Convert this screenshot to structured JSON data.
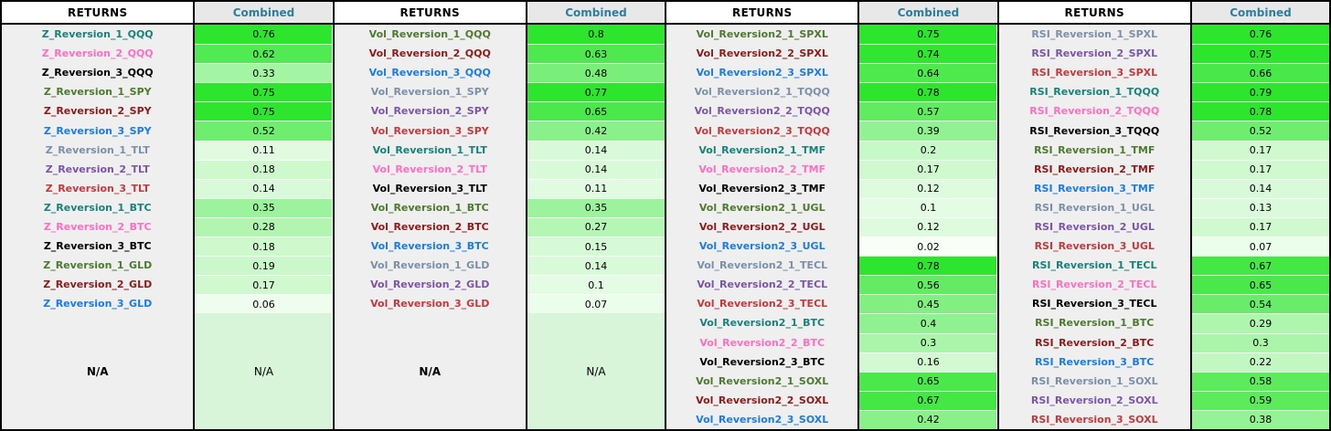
{
  "headers": {
    "returns": "RETURNS",
    "combined": "Combined"
  },
  "na_label": "N/A",
  "palette": {
    "teal": "#18827b",
    "pink": "#ff6ec0",
    "black": "#000000",
    "green": "#4d7a2e",
    "darkred": "#8e1b1b",
    "blue": "#1b7ce5",
    "slate": "#7b8fa9",
    "purple": "#7d55a8",
    "crimson": "#c23a3e",
    "header_combined_text": "#2d7d9e",
    "header_combined_bg": "#e8e8e8",
    "returns_cell_bg": "#efefef",
    "heat_high": "#2ee52e",
    "heat_low": "#ffffff",
    "na_value_bg": "#d9f5d9",
    "border": "#000000"
  },
  "chart_data": {
    "type": "table",
    "column_headers": [
      "RETURNS",
      "Combined"
    ],
    "value_scale": {
      "low": 0,
      "saturation_point": 0.75,
      "low_color": "#ffffff",
      "high_color": "#2ee52e"
    },
    "blocks": [
      {
        "name": "Z_Reversion",
        "has_na_row": true,
        "rows": [
          {
            "label": "Z_Reversion_1_QQQ",
            "color": "teal",
            "value": "0.76"
          },
          {
            "label": "Z_Reversion_2_QQQ",
            "color": "pink",
            "value": "0.62"
          },
          {
            "label": "Z_Reversion_3_QQQ",
            "color": "black",
            "value": "0.33"
          },
          {
            "label": "Z_Reversion_1_SPY",
            "color": "green",
            "value": "0.75"
          },
          {
            "label": "Z_Reversion_2_SPY",
            "color": "darkred",
            "value": "0.75"
          },
          {
            "label": "Z_Reversion_3_SPY",
            "color": "blue",
            "value": "0.52"
          },
          {
            "label": "Z_Reversion_1_TLT",
            "color": "slate",
            "value": "0.11"
          },
          {
            "label": "Z_Reversion_2_TLT",
            "color": "purple",
            "value": "0.18"
          },
          {
            "label": "Z_Reversion_3_TLT",
            "color": "crimson",
            "value": "0.14"
          },
          {
            "label": "Z_Reversion_1_BTC",
            "color": "teal",
            "value": "0.35"
          },
          {
            "label": "Z_Reversion_2_BTC",
            "color": "pink",
            "value": "0.28"
          },
          {
            "label": "Z_Reversion_3_BTC",
            "color": "black",
            "value": "0.18"
          },
          {
            "label": "Z_Reversion_1_GLD",
            "color": "green",
            "value": "0.19"
          },
          {
            "label": "Z_Reversion_2_GLD",
            "color": "darkred",
            "value": "0.17"
          },
          {
            "label": "Z_Reversion_3_GLD",
            "color": "blue",
            "value": "0.06"
          }
        ]
      },
      {
        "name": "Vol_Reversion",
        "has_na_row": true,
        "rows": [
          {
            "label": "Vol_Reversion_1_QQQ",
            "color": "green",
            "value": "0.8"
          },
          {
            "label": "Vol_Reversion_2_QQQ",
            "color": "darkred",
            "value": "0.63"
          },
          {
            "label": "Vol_Reversion_3_QQQ",
            "color": "blue",
            "value": "0.48"
          },
          {
            "label": "Vol_Reversion_1_SPY",
            "color": "slate",
            "value": "0.77"
          },
          {
            "label": "Vol_Reversion_2_SPY",
            "color": "purple",
            "value": "0.65"
          },
          {
            "label": "Vol_Reversion_3_SPY",
            "color": "crimson",
            "value": "0.42"
          },
          {
            "label": "Vol_Reversion_1_TLT",
            "color": "teal",
            "value": "0.14"
          },
          {
            "label": "Vol_Reversion_2_TLT",
            "color": "pink",
            "value": "0.14"
          },
          {
            "label": "Vol_Reversion_3_TLT",
            "color": "black",
            "value": "0.11"
          },
          {
            "label": "Vol_Reversion_1_BTC",
            "color": "green",
            "value": "0.35"
          },
          {
            "label": "Vol_Reversion_2_BTC",
            "color": "darkred",
            "value": "0.27"
          },
          {
            "label": "Vol_Reversion_3_BTC",
            "color": "blue",
            "value": "0.15"
          },
          {
            "label": "Vol_Reversion_1_GLD",
            "color": "slate",
            "value": "0.14"
          },
          {
            "label": "Vol_Reversion_2_GLD",
            "color": "purple",
            "value": "0.1"
          },
          {
            "label": "Vol_Reversion_3_GLD",
            "color": "crimson",
            "value": "0.07"
          }
        ]
      },
      {
        "name": "Vol_Reversion2",
        "has_na_row": false,
        "rows": [
          {
            "label": "Vol_Reversion2_1_SPXL",
            "color": "green",
            "value": "0.75"
          },
          {
            "label": "Vol_Reversion2_2_SPXL",
            "color": "darkred",
            "value": "0.74"
          },
          {
            "label": "Vol_Reversion2_3_SPXL",
            "color": "blue",
            "value": "0.64"
          },
          {
            "label": "Vol_Reversion2_1_TQQQ",
            "color": "slate",
            "value": "0.78"
          },
          {
            "label": "Vol_Reversion2_2_TQQQ",
            "color": "purple",
            "value": "0.57"
          },
          {
            "label": "Vol_Reversion2_3_TQQQ",
            "color": "crimson",
            "value": "0.39"
          },
          {
            "label": "Vol_Reversion2_1_TMF",
            "color": "teal",
            "value": "0.2"
          },
          {
            "label": "Vol_Reversion2_2_TMF",
            "color": "pink",
            "value": "0.17"
          },
          {
            "label": "Vol_Reversion2_3_TMF",
            "color": "black",
            "value": "0.12"
          },
          {
            "label": "Vol_Reversion2_1_UGL",
            "color": "green",
            "value": "0.1"
          },
          {
            "label": "Vol_Reversion2_2_UGL",
            "color": "darkred",
            "value": "0.12"
          },
          {
            "label": "Vol_Reversion2_3_UGL",
            "color": "blue",
            "value": "0.02"
          },
          {
            "label": "Vol_Reversion2_1_TECL",
            "color": "slate",
            "value": "0.78"
          },
          {
            "label": "Vol_Reversion2_2_TECL",
            "color": "purple",
            "value": "0.56"
          },
          {
            "label": "Vol_Reversion2_3_TECL",
            "color": "crimson",
            "value": "0.45"
          },
          {
            "label": "Vol_Reversion2_1_BTC",
            "color": "teal",
            "value": "0.4"
          },
          {
            "label": "Vol_Reversion2_2_BTC",
            "color": "pink",
            "value": "0.3"
          },
          {
            "label": "Vol_Reversion2_3_BTC",
            "color": "black",
            "value": "0.16"
          },
          {
            "label": "Vol_Reversion2_1_SOXL",
            "color": "green",
            "value": "0.65"
          },
          {
            "label": "Vol_Reversion2_2_SOXL",
            "color": "darkred",
            "value": "0.67"
          },
          {
            "label": "Vol_Reversion2_3_SOXL",
            "color": "blue",
            "value": "0.42"
          }
        ]
      },
      {
        "name": "RSI_Reversion",
        "has_na_row": false,
        "rows": [
          {
            "label": "RSI_Reversion_1_SPXL",
            "color": "slate",
            "value": "0.76"
          },
          {
            "label": "RSI_Reversion_2_SPXL",
            "color": "purple",
            "value": "0.75"
          },
          {
            "label": "RSI_Reversion_3_SPXL",
            "color": "crimson",
            "value": "0.66"
          },
          {
            "label": "RSI_Reversion_1_TQQQ",
            "color": "teal",
            "value": "0.79"
          },
          {
            "label": "RSI_Reversion_2_TQQQ",
            "color": "pink",
            "value": "0.78"
          },
          {
            "label": "RSI_Reversion_3_TQQQ",
            "color": "black",
            "value": "0.52"
          },
          {
            "label": "RSI_Reversion_1_TMF",
            "color": "green",
            "value": "0.17"
          },
          {
            "label": "RSI_Reversion_2_TMF",
            "color": "darkred",
            "value": "0.17"
          },
          {
            "label": "RSI_Reversion_3_TMF",
            "color": "blue",
            "value": "0.14"
          },
          {
            "label": "RSI_Reversion_1_UGL",
            "color": "slate",
            "value": "0.13"
          },
          {
            "label": "RSI_Reversion_2_UGL",
            "color": "purple",
            "value": "0.17"
          },
          {
            "label": "RSI_Reversion_3_UGL",
            "color": "crimson",
            "value": "0.07"
          },
          {
            "label": "RSI_Reversion_1_TECL",
            "color": "teal",
            "value": "0.67"
          },
          {
            "label": "RSI_Reversion_2_TECL",
            "color": "pink",
            "value": "0.65"
          },
          {
            "label": "RSI_Reversion_3_TECL",
            "color": "black",
            "value": "0.54"
          },
          {
            "label": "RSI_Reversion_1_BTC",
            "color": "green",
            "value": "0.29"
          },
          {
            "label": "RSI_Reversion_2_BTC",
            "color": "darkred",
            "value": "0.3"
          },
          {
            "label": "RSI_Reversion_3_BTC",
            "color": "blue",
            "value": "0.22"
          },
          {
            "label": "RSI_Reversion_1_SOXL",
            "color": "slate",
            "value": "0.58"
          },
          {
            "label": "RSI_Reversion_2_SOXL",
            "color": "purple",
            "value": "0.59"
          },
          {
            "label": "RSI_Reversion_3_SOXL",
            "color": "crimson",
            "value": "0.38"
          }
        ]
      }
    ]
  }
}
